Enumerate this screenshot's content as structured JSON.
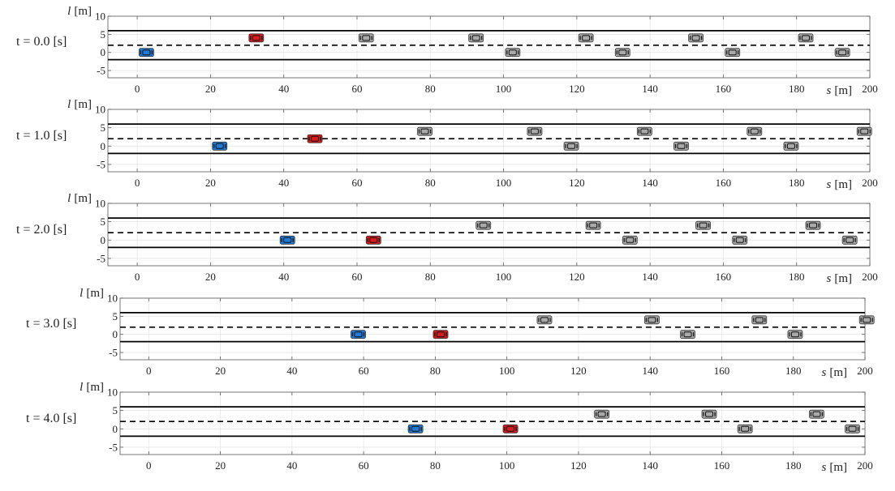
{
  "chart_data": {
    "type": "scatter",
    "xlabel_sym": "s",
    "xlabel_unit": "[m]",
    "ylabel_sym": "l",
    "ylabel_unit": "[m]",
    "xlim": [
      -8,
      200
    ],
    "ylim": [
      -7,
      10
    ],
    "xticks": [
      0,
      20,
      40,
      60,
      80,
      100,
      120,
      140,
      160,
      180,
      200
    ],
    "yticks": [
      10,
      5,
      0,
      -5
    ],
    "grid": true,
    "lane_lines": {
      "solid": [
        6,
        -2
      ],
      "dashed": [
        2
      ]
    },
    "colors": {
      "ego": "#1e7bd8",
      "leader": "#d81c1c",
      "traffic": "#a9a9a9",
      "solid_line": "#000000"
    },
    "panels": [
      {
        "time_label": "t = 0.0 [s]",
        "ego": {
          "s": 2.5,
          "l": 0
        },
        "leader": {
          "s": 32.5,
          "l": 4
        },
        "traffic": [
          {
            "s": 62.5,
            "l": 4
          },
          {
            "s": 92.5,
            "l": 4
          },
          {
            "s": 122.5,
            "l": 4
          },
          {
            "s": 152.5,
            "l": 4
          },
          {
            "s": 182.5,
            "l": 4
          },
          {
            "s": 102.5,
            "l": 0
          },
          {
            "s": 132.5,
            "l": 0
          },
          {
            "s": 162.5,
            "l": 0
          },
          {
            "s": 192.5,
            "l": 0
          }
        ]
      },
      {
        "time_label": "t = 1.0 [s]",
        "ego": {
          "s": 22.5,
          "l": 0
        },
        "leader": {
          "s": 48.5,
          "l": 2
        },
        "traffic": [
          {
            "s": 78.5,
            "l": 4
          },
          {
            "s": 108.5,
            "l": 4
          },
          {
            "s": 138.5,
            "l": 4
          },
          {
            "s": 168.5,
            "l": 4
          },
          {
            "s": 198.5,
            "l": 4
          },
          {
            "s": 118.5,
            "l": 0
          },
          {
            "s": 148.5,
            "l": 0
          },
          {
            "s": 178.5,
            "l": 0
          }
        ]
      },
      {
        "time_label": "t = 2.0 [s]",
        "ego": {
          "s": 41,
          "l": 0
        },
        "leader": {
          "s": 64.5,
          "l": 0
        },
        "traffic": [
          {
            "s": 94.5,
            "l": 4
          },
          {
            "s": 124.5,
            "l": 4
          },
          {
            "s": 154.5,
            "l": 4
          },
          {
            "s": 184.5,
            "l": 4
          },
          {
            "s": 134.5,
            "l": 0
          },
          {
            "s": 164.5,
            "l": 0
          },
          {
            "s": 194.5,
            "l": 0
          }
        ]
      },
      {
        "time_label": "t = 3.0 [s]",
        "ego": {
          "s": 58.5,
          "l": 0
        },
        "leader": {
          "s": 81.5,
          "l": 0
        },
        "traffic": [
          {
            "s": 110.5,
            "l": 4
          },
          {
            "s": 140.5,
            "l": 4
          },
          {
            "s": 170.5,
            "l": 4
          },
          {
            "s": 200.5,
            "l": 4
          },
          {
            "s": 150.5,
            "l": 0
          },
          {
            "s": 180.5,
            "l": 0
          }
        ]
      },
      {
        "time_label": "t = 4.0 [s]",
        "ego": {
          "s": 74.5,
          "l": 0
        },
        "leader": {
          "s": 101,
          "l": 0
        },
        "traffic": [
          {
            "s": 126.5,
            "l": 4
          },
          {
            "s": 156.5,
            "l": 4
          },
          {
            "s": 186.5,
            "l": 4
          },
          {
            "s": 166.5,
            "l": 0
          },
          {
            "s": 196.5,
            "l": 0
          }
        ]
      }
    ]
  }
}
